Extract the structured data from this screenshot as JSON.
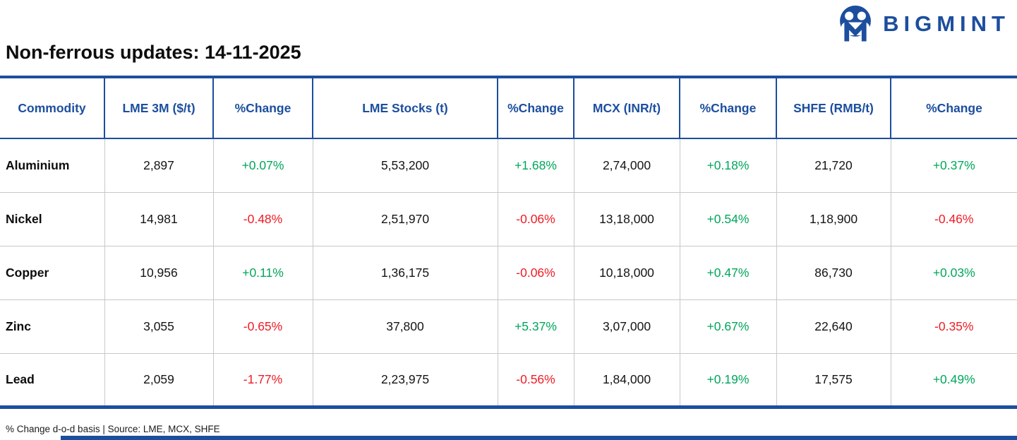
{
  "brand": {
    "name": "BIGMINT"
  },
  "page": {
    "title": "Non-ferrous updates: 14-11-2025",
    "footnote": "% Change d-o-d basis | Source: LME, MCX, SHFE"
  },
  "colors": {
    "blue": "#1c4e9e",
    "green": "#00a65c",
    "red": "#ee1c25",
    "grid": "#c8c8c8"
  },
  "chart_data": {
    "type": "table",
    "title": "Non-ferrous updates: 14-11-2025",
    "columns": [
      "Commodity",
      "LME 3M ($/t)",
      "%Change",
      "LME Stocks (t)",
      "%Change",
      "MCX (INR/t)",
      "%Change",
      "SHFE (RMB/t)",
      "%Change"
    ],
    "rows": [
      {
        "commodity": "Aluminium",
        "values": [
          "2,897",
          "+0.07%",
          "5,53,200",
          "+1.68%",
          "2,74,000",
          "+0.18%",
          "21,720",
          "+0.37%"
        ]
      },
      {
        "commodity": "Nickel",
        "values": [
          "14,981",
          "-0.48%",
          "2,51,970",
          "-0.06%",
          "13,18,000",
          "+0.54%",
          "1,18,900",
          "-0.46%"
        ]
      },
      {
        "commodity": "Copper",
        "values": [
          "10,956",
          "+0.11%",
          "1,36,175",
          "-0.06%",
          "10,18,000",
          "+0.47%",
          "86,730",
          "+0.03%"
        ]
      },
      {
        "commodity": "Zinc",
        "values": [
          "3,055",
          "-0.65%",
          "37,800",
          "+5.37%",
          "3,07,000",
          "+0.67%",
          "22,640",
          "-0.35%"
        ]
      },
      {
        "commodity": "Lead",
        "values": [
          "2,059",
          "-1.77%",
          "2,23,975",
          "-0.56%",
          "1,84,000",
          "+0.19%",
          "17,575",
          "+0.49%"
        ]
      }
    ],
    "footnote": "% Change d-o-d basis | Source: LME, MCX, SHFE"
  }
}
